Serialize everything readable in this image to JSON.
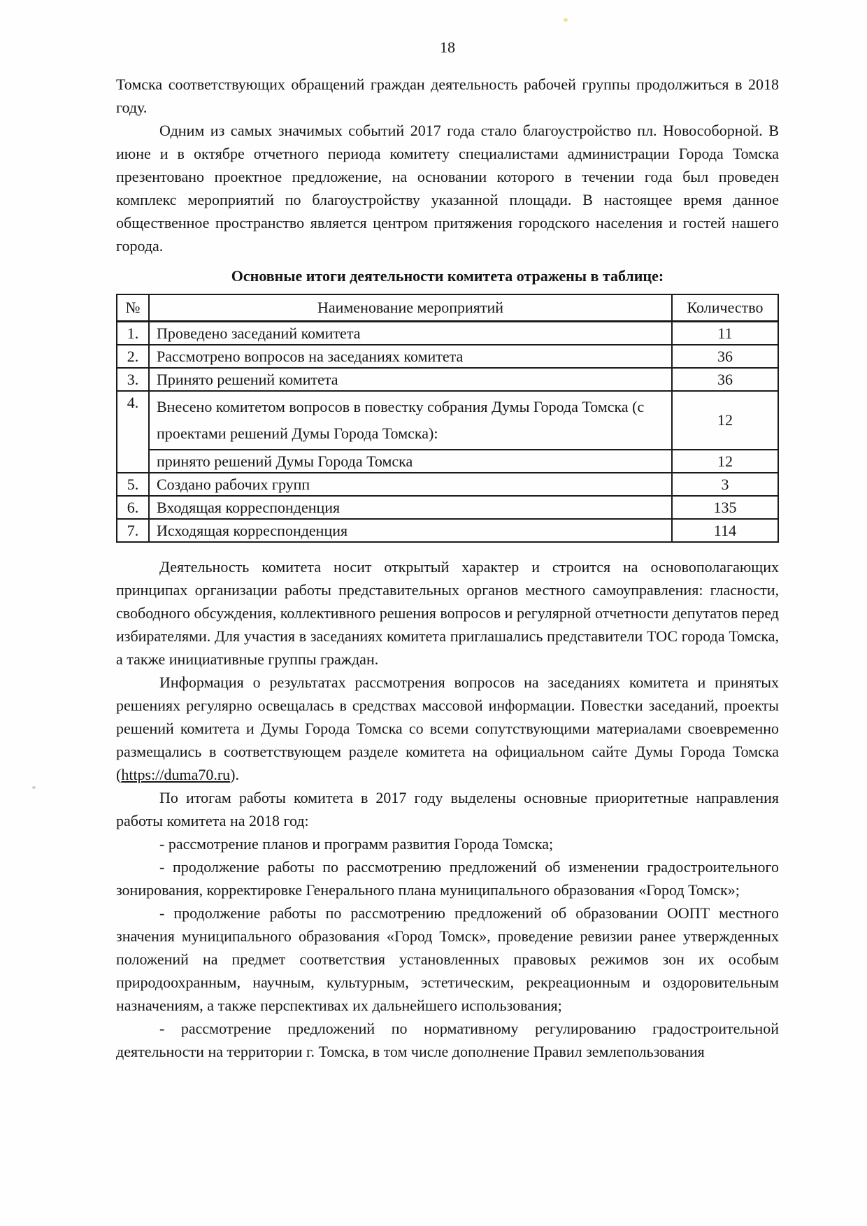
{
  "page": {
    "number": "18"
  },
  "paragraphs_top": [
    {
      "indent": false,
      "text": "Томска соответствующих обращений граждан деятельность рабочей группы продолжиться в 2018 году."
    },
    {
      "indent": true,
      "text": "Одним из самых значимых событий 2017 года стало благоустройство пл. Новособорной. В июне и в октябре отчетного периода комитету специалистами администрации Города Томска презентовано проектное предложение, на основании которого в течении года был проведен комплекс мероприятий по благоустройству указанной площади. В настоящее время данное общественное пространство является центром притяжения городского населения и гостей нашего города."
    }
  ],
  "table_heading": "Основные итоги деятельности комитета отражены в таблице:",
  "table": {
    "headers": [
      "№",
      "Наименование мероприятий",
      "Количество"
    ],
    "rows": [
      {
        "num": "1.",
        "name": "Проведено заседаний комитета",
        "qty": "11"
      },
      {
        "num": "2.",
        "name": "Рассмотрено вопросов на заседаниях комитета",
        "qty": "36"
      },
      {
        "num": "3.",
        "name": "Принято решений комитета",
        "qty": "36"
      },
      {
        "num": "4.",
        "name": "Внесено комитетом вопросов в повестку собрания Думы Города Томска (с проектами решений Думы Города Томска):",
        "qty": "12",
        "subrow": {
          "name": "принято решений Думы Города Томска",
          "qty": "12"
        }
      },
      {
        "num": "5.",
        "name": "Создано рабочих групп",
        "qty": "3"
      },
      {
        "num": "6.",
        "name": "Входящая корреспонденция",
        "qty": "135"
      },
      {
        "num": "7.",
        "name": "Исходящая корреспонденция",
        "qty": "114"
      }
    ]
  },
  "paragraphs_bottom": [
    {
      "indent": true,
      "text": "Деятельность комитета носит открытый характер и строится на основополагающих принципах организации работы представительных органов местного самоуправления: гласности, свободного обсуждения, коллективного решения вопросов и регулярной отчетности депутатов перед избирателями. Для участия в заседаниях комитета приглашались представители ТОС города Томска, а также инициативные группы граждан."
    },
    {
      "indent": true,
      "text_before": "Информация о результатах рассмотрения вопросов на заседаниях комитета и принятых решениях регулярно освещалась в средствах массовой информации. Повестки заседаний, проекты решений комитета и Думы Города Томска со всеми сопутствующими материалами своевременно размещались в соответствующем разделе комитета на официальном сайте Думы Города Томска (",
      "link": "https://duma70.ru",
      "text_after": ")."
    },
    {
      "indent": true,
      "text": "По итогам работы комитета в 2017 году выделены основные приоритетные направления работы комитета на 2018 год:"
    },
    {
      "indent": true,
      "text": "- рассмотрение планов и программ развития Города Томска;"
    },
    {
      "indent": true,
      "text": "- продолжение работы по рассмотрению предложений об изменении градостроительного зонирования, корректировке Генерального плана муниципального образования «Город Томск»;"
    },
    {
      "indent": true,
      "text": "- продолжение работы по рассмотрению предложений об образовании ООПТ местного значения муниципального образования «Город Томск», проведение ревизии ранее утвержденных положений на предмет соответствия установленных правовых режимов зон их особым природоохранным, научным, культурным, эстетическим, рекреационным и оздоровительным назначениям, а также перспективах их дальнейшего использования;"
    },
    {
      "indent": true,
      "text": "- рассмотрение предложений по нормативному регулированию градостроительной деятельности на территории г. Томска, в том числе дополнение Правил землепользования"
    }
  ]
}
